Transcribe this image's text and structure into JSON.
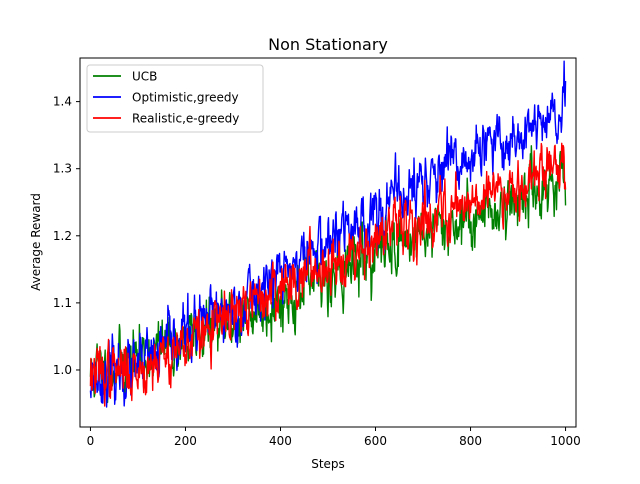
{
  "chart_data": {
    "type": "line",
    "title": "Non Stationary",
    "xlabel": "Steps",
    "ylabel": "Average Reward",
    "xlim": [
      -22,
      1022
    ],
    "ylim": [
      0.915,
      1.465
    ],
    "xticks": [
      0,
      200,
      400,
      600,
      800,
      1000
    ],
    "yticks": [
      1.0,
      1.1,
      1.2,
      1.3,
      1.4
    ],
    "xtick_labels": [
      "0",
      "200",
      "400",
      "600",
      "800",
      "1000"
    ],
    "ytick_labels": [
      "1.0",
      "1.1",
      "1.2",
      "1.3",
      "1.4"
    ],
    "grid": false,
    "legend_position": "upper-left",
    "n_steps": 1000,
    "series": [
      {
        "name": "UCB",
        "color": "#008000",
        "x_keys": [
          0,
          100,
          200,
          300,
          400,
          500,
          600,
          700,
          800,
          900,
          1000
        ],
        "y_keys": [
          0.995,
          1.02,
          1.045,
          1.075,
          1.105,
          1.14,
          1.175,
          1.205,
          1.225,
          1.255,
          1.29
        ],
        "noise": 0.026,
        "seed": 11
      },
      {
        "name": "Optimistic,greedy",
        "color": "#0000ff",
        "x_keys": [
          0,
          100,
          200,
          300,
          400,
          500,
          600,
          700,
          800,
          900,
          1000
        ],
        "y_keys": [
          0.99,
          1.0,
          1.055,
          1.09,
          1.145,
          1.19,
          1.235,
          1.28,
          1.315,
          1.35,
          1.38
        ],
        "noise": 0.026,
        "seed": 23
      },
      {
        "name": "Realistic,e-greedy",
        "color": "#ff0000",
        "x_keys": [
          0,
          100,
          200,
          300,
          400,
          500,
          600,
          700,
          800,
          900,
          1000
        ],
        "y_keys": [
          0.995,
          1.0,
          1.04,
          1.08,
          1.125,
          1.16,
          1.195,
          1.225,
          1.255,
          1.28,
          1.31
        ],
        "noise": 0.024,
        "seed": 37
      }
    ]
  }
}
